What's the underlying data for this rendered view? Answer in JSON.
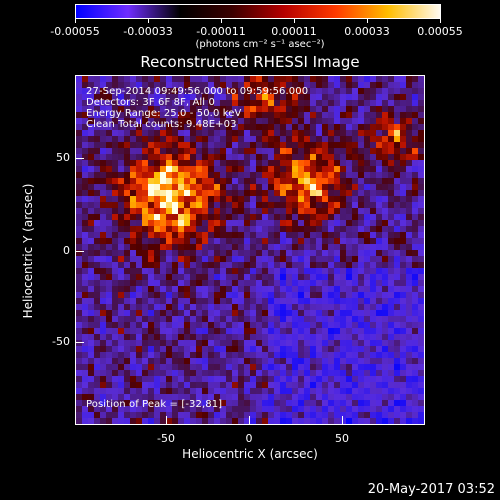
{
  "colorbar": {
    "ticks": [
      "-0.00055",
      "-0.00033",
      "-0.00011",
      "0.00011",
      "0.00033",
      "0.00055"
    ],
    "units": "(photons cm⁻² s⁻¹ asec⁻²)",
    "gradient_colors": [
      "#0000ff",
      "#6f2dff",
      "#000000",
      "#3b0000",
      "#b50000",
      "#ff3a00",
      "#ffbd00",
      "#fffaf0"
    ]
  },
  "title": "Reconstructed RHESSI Image",
  "overlay_text": {
    "line1": "27-Sep-2014 09:49:56.000 to 09:59:56.000",
    "line2": "Detectors: 3F 6F 8F, All 0",
    "line3": "Energy Range: 25.0 - 50.0 keV",
    "line4": "Clean     Total counts: 9.48E+03",
    "peak": "Position of Peak = [-32,81]"
  },
  "axes": {
    "x_label": "Heliocentric X (arcsec)",
    "y_label": "Heliocentric Y (arcsec)",
    "x_ticks": [
      "-50",
      "0",
      "50"
    ],
    "y_ticks": [
      "50",
      "0",
      "-50"
    ]
  },
  "timestamp": "20-May-2017 03:52"
}
